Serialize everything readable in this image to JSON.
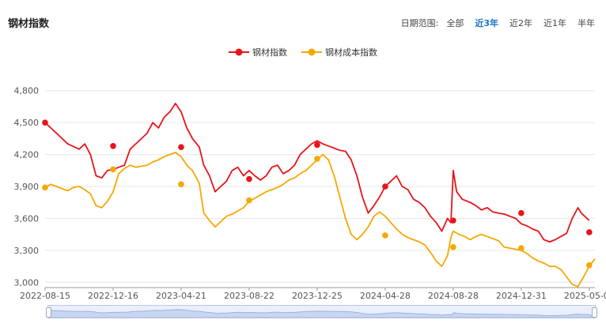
{
  "header": {
    "title": "钢材指数",
    "range_label": "日期范围:",
    "range_options": [
      "全部",
      "近3年",
      "近2年",
      "近1年",
      "半年"
    ],
    "active_option": "近3年"
  },
  "colors": {
    "steel_index": "#e8141b",
    "cost_index": "#f5a800",
    "grid": "#e6e6e6",
    "active_option": "#1a73c8"
  },
  "chart_data": {
    "type": "line",
    "x_tick_labels": [
      "2022-08-15",
      "2022-12-16",
      "2023-04-21",
      "2023-08-22",
      "2023-12-25",
      "2024-04-28",
      "2024-08-28",
      "2024-12-31",
      "2025-05-09"
    ],
    "ylim": [
      2950,
      4850
    ],
    "y_ticks": [
      3000,
      3300,
      3600,
      3900,
      4200,
      4500,
      4800
    ],
    "y_tick_labels": [
      "3,000",
      "3,300",
      "3,600",
      "3,900",
      "4,200",
      "4,500",
      "4,800"
    ],
    "grid": "horizontal",
    "legend_position": "top-center",
    "series": [
      {
        "name": "钢材指数",
        "color": "#e8141b",
        "points": [
          [
            0.0,
            4500
          ],
          [
            0.8,
            4420
          ],
          [
            2.0,
            4300
          ],
          [
            3.0,
            4250
          ],
          [
            3.5,
            4300
          ],
          [
            4.0,
            4200
          ],
          [
            4.5,
            4000
          ],
          [
            5.0,
            3980
          ],
          [
            5.5,
            4050
          ],
          [
            6.0,
            4060
          ],
          [
            6.5,
            4080
          ],
          [
            7.0,
            4100
          ],
          [
            7.5,
            4250
          ],
          [
            8.0,
            4300
          ],
          [
            8.5,
            4350
          ],
          [
            9.0,
            4400
          ],
          [
            9.5,
            4500
          ],
          [
            10.0,
            4450
          ],
          [
            10.5,
            4550
          ],
          [
            11.0,
            4600
          ],
          [
            11.5,
            4680
          ],
          [
            12.0,
            4600
          ],
          [
            12.5,
            4450
          ],
          [
            13.0,
            4350
          ],
          [
            13.6,
            4270
          ],
          [
            14.0,
            4100
          ],
          [
            14.5,
            4000
          ],
          [
            15.0,
            3850
          ],
          [
            15.5,
            3900
          ],
          [
            16.0,
            3950
          ],
          [
            16.5,
            4050
          ],
          [
            17.0,
            4080
          ],
          [
            17.5,
            4000
          ],
          [
            18.0,
            4050
          ],
          [
            18.5,
            4000
          ],
          [
            19.0,
            3960
          ],
          [
            19.5,
            4000
          ],
          [
            20.0,
            4080
          ],
          [
            20.5,
            4100
          ],
          [
            21.0,
            4020
          ],
          [
            21.5,
            4050
          ],
          [
            22.0,
            4100
          ],
          [
            22.5,
            4200
          ],
          [
            23.0,
            4250
          ],
          [
            23.5,
            4300
          ],
          [
            24.0,
            4330
          ],
          [
            24.5,
            4300
          ],
          [
            25.0,
            4280
          ],
          [
            25.5,
            4260
          ],
          [
            26.0,
            4240
          ],
          [
            26.5,
            4230
          ],
          [
            27.0,
            4150
          ],
          [
            27.5,
            4000
          ],
          [
            28.0,
            3800
          ],
          [
            28.5,
            3650
          ],
          [
            29.0,
            3720
          ],
          [
            29.5,
            3800
          ],
          [
            30.0,
            3900
          ],
          [
            30.5,
            3950
          ],
          [
            31.0,
            4000
          ],
          [
            31.5,
            3900
          ],
          [
            32.0,
            3870
          ],
          [
            32.5,
            3780
          ],
          [
            33.0,
            3750
          ],
          [
            33.5,
            3700
          ],
          [
            34.0,
            3620
          ],
          [
            34.5,
            3560
          ],
          [
            35.0,
            3480
          ],
          [
            35.5,
            3600
          ],
          [
            35.8,
            3560
          ],
          [
            36.0,
            4050
          ],
          [
            36.3,
            3850
          ],
          [
            36.8,
            3780
          ],
          [
            37.5,
            3750
          ],
          [
            38.0,
            3720
          ],
          [
            38.5,
            3680
          ],
          [
            39.0,
            3700
          ],
          [
            39.5,
            3660
          ],
          [
            40.0,
            3650
          ],
          [
            40.5,
            3640
          ],
          [
            41.0,
            3620
          ],
          [
            41.5,
            3600
          ],
          [
            42.0,
            3550
          ],
          [
            42.5,
            3530
          ],
          [
            43.0,
            3500
          ],
          [
            43.5,
            3480
          ],
          [
            44.0,
            3400
          ],
          [
            44.5,
            3380
          ],
          [
            45.0,
            3400
          ],
          [
            45.5,
            3430
          ],
          [
            46.0,
            3460
          ],
          [
            46.5,
            3600
          ],
          [
            47.0,
            3700
          ],
          [
            47.3,
            3650
          ],
          [
            48.0,
            3580
          ]
        ],
        "markers": [
          [
            0,
            4500
          ],
          [
            6,
            4280
          ],
          [
            12,
            4270
          ],
          [
            18,
            3970
          ],
          [
            24,
            4290
          ],
          [
            30,
            3900
          ],
          [
            36,
            3580
          ],
          [
            42,
            3650
          ],
          [
            48,
            3470
          ]
        ]
      },
      {
        "name": "钢材成本指数",
        "color": "#f5a800",
        "points": [
          [
            0.0,
            3890
          ],
          [
            0.5,
            3920
          ],
          [
            1.0,
            3900
          ],
          [
            1.5,
            3880
          ],
          [
            2.0,
            3860
          ],
          [
            2.5,
            3890
          ],
          [
            3.0,
            3900
          ],
          [
            3.5,
            3870
          ],
          [
            4.0,
            3830
          ],
          [
            4.5,
            3720
          ],
          [
            5.0,
            3700
          ],
          [
            5.5,
            3760
          ],
          [
            6.0,
            3850
          ],
          [
            6.5,
            4020
          ],
          [
            7.0,
            4070
          ],
          [
            7.5,
            4100
          ],
          [
            8.0,
            4080
          ],
          [
            8.5,
            4090
          ],
          [
            9.0,
            4100
          ],
          [
            9.5,
            4130
          ],
          [
            10.0,
            4150
          ],
          [
            10.5,
            4180
          ],
          [
            11.0,
            4200
          ],
          [
            11.5,
            4220
          ],
          [
            12.0,
            4180
          ],
          [
            12.5,
            4100
          ],
          [
            13.0,
            4050
          ],
          [
            13.6,
            3930
          ],
          [
            14.0,
            3650
          ],
          [
            14.5,
            3580
          ],
          [
            15.0,
            3520
          ],
          [
            15.5,
            3570
          ],
          [
            16.0,
            3620
          ],
          [
            16.5,
            3640
          ],
          [
            17.0,
            3670
          ],
          [
            17.5,
            3700
          ],
          [
            18.0,
            3760
          ],
          [
            18.5,
            3790
          ],
          [
            19.0,
            3820
          ],
          [
            19.5,
            3850
          ],
          [
            20.0,
            3870
          ],
          [
            20.5,
            3890
          ],
          [
            21.0,
            3920
          ],
          [
            21.5,
            3960
          ],
          [
            22.0,
            3980
          ],
          [
            22.5,
            4020
          ],
          [
            23.0,
            4050
          ],
          [
            23.5,
            4100
          ],
          [
            24.0,
            4150
          ],
          [
            24.5,
            4200
          ],
          [
            25.0,
            4150
          ],
          [
            25.5,
            4000
          ],
          [
            26.0,
            3800
          ],
          [
            26.5,
            3600
          ],
          [
            27.0,
            3450
          ],
          [
            27.5,
            3400
          ],
          [
            28.0,
            3450
          ],
          [
            28.5,
            3520
          ],
          [
            29.0,
            3620
          ],
          [
            29.5,
            3660
          ],
          [
            30.0,
            3620
          ],
          [
            30.5,
            3560
          ],
          [
            31.0,
            3500
          ],
          [
            31.5,
            3450
          ],
          [
            32.0,
            3420
          ],
          [
            32.5,
            3400
          ],
          [
            33.0,
            3380
          ],
          [
            33.5,
            3350
          ],
          [
            34.0,
            3280
          ],
          [
            34.5,
            3200
          ],
          [
            35.0,
            3150
          ],
          [
            35.5,
            3250
          ],
          [
            35.8,
            3420
          ],
          [
            36.0,
            3480
          ],
          [
            36.5,
            3450
          ],
          [
            37.0,
            3430
          ],
          [
            37.5,
            3400
          ],
          [
            38.0,
            3430
          ],
          [
            38.5,
            3450
          ],
          [
            39.0,
            3430
          ],
          [
            39.5,
            3410
          ],
          [
            40.0,
            3390
          ],
          [
            40.5,
            3330
          ],
          [
            41.0,
            3320
          ],
          [
            41.5,
            3310
          ],
          [
            42.0,
            3300
          ],
          [
            42.5,
            3270
          ],
          [
            43.0,
            3230
          ],
          [
            43.5,
            3200
          ],
          [
            44.0,
            3180
          ],
          [
            44.5,
            3150
          ],
          [
            45.0,
            3150
          ],
          [
            45.5,
            3120
          ],
          [
            46.0,
            3050
          ],
          [
            46.5,
            2980
          ],
          [
            47.0,
            2960
          ],
          [
            47.5,
            3050
          ],
          [
            48.0,
            3150
          ],
          [
            48.5,
            3220
          ]
        ],
        "markers": [
          [
            0,
            3890
          ],
          [
            6,
            4060
          ],
          [
            12,
            3920
          ],
          [
            18,
            3770
          ],
          [
            24,
            4160
          ],
          [
            30,
            3440
          ],
          [
            36,
            3330
          ],
          [
            42,
            3320
          ],
          [
            48,
            3160
          ]
        ]
      }
    ]
  }
}
